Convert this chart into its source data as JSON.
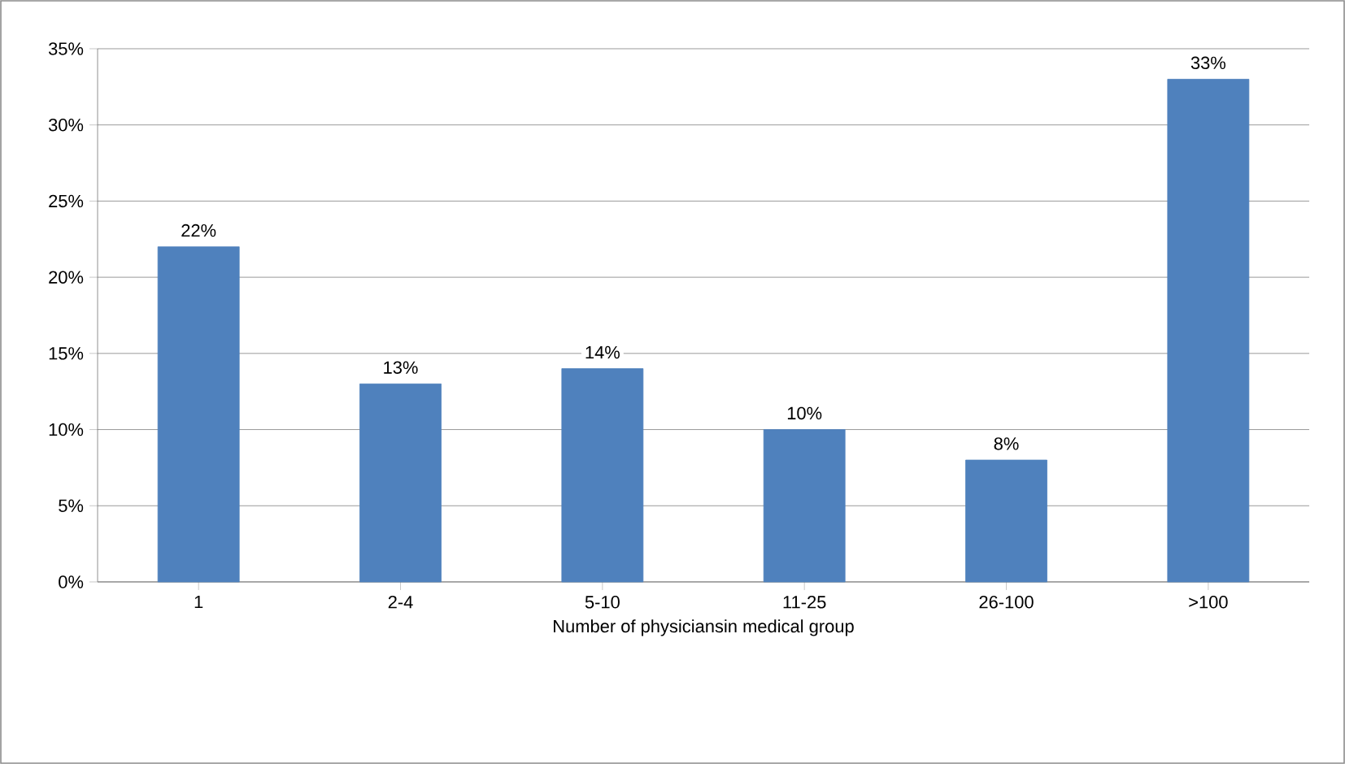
{
  "chart_data": {
    "type": "bar",
    "xlabel": "Number of physiciansin medical group",
    "categories": [
      "1",
      "2-4",
      "5-10",
      "11-25",
      "26-100",
      ">100"
    ],
    "values": [
      22,
      13,
      14,
      10,
      8,
      33
    ],
    "value_labels": [
      "22%",
      "13%",
      "14%",
      "10%",
      "8%",
      "33%"
    ],
    "color": "#4f81bd",
    "ylim": [
      0,
      35
    ],
    "yticks": [
      {
        "value": 0,
        "label": "0%"
      },
      {
        "value": 5,
        "label": "5%"
      },
      {
        "value": 10,
        "label": "10%"
      },
      {
        "value": 15,
        "label": "15%"
      },
      {
        "value": 20,
        "label": "20%"
      },
      {
        "value": 25,
        "label": "25%"
      },
      {
        "value": 30,
        "label": "30%"
      },
      {
        "value": 35,
        "label": "35%"
      }
    ],
    "grid": "y"
  }
}
